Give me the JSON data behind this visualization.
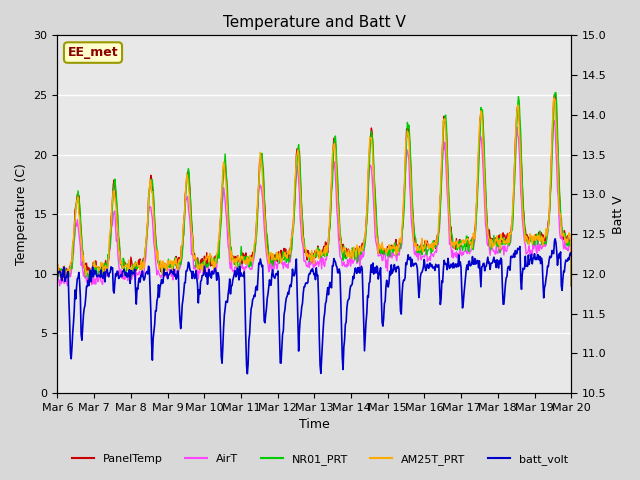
{
  "title": "Temperature and Batt V",
  "xlabel": "Time",
  "ylabel_left": "Temperature (C)",
  "ylabel_right": "Batt V",
  "annotation": "EE_met",
  "xlim": [
    0,
    14
  ],
  "ylim_left": [
    0,
    30
  ],
  "ylim_right": [
    10.5,
    15.0
  ],
  "xtick_labels": [
    "Mar 6",
    "Mar 7",
    "Mar 8",
    "Mar 9",
    "Mar 10",
    "Mar 11",
    "Mar 12",
    "Mar 13",
    "Mar 14",
    "Mar 15",
    "Mar 16",
    "Mar 17",
    "Mar 18",
    "Mar 19",
    "Mar 20"
  ],
  "xtick_positions": [
    0,
    1,
    2,
    3,
    4,
    5,
    6,
    7,
    8,
    9,
    10,
    11,
    12,
    13,
    14
  ],
  "yticks_left": [
    0,
    5,
    10,
    15,
    20,
    25,
    30
  ],
  "yticks_right": [
    10.5,
    11.0,
    11.5,
    12.0,
    12.5,
    13.0,
    13.5,
    14.0,
    14.5,
    15.0
  ],
  "bg_color": "#d8d8d8",
  "plot_bg_color": "#e8e8e8",
  "series": {
    "PanelTemp": {
      "color": "#cc0000",
      "lw": 1.0
    },
    "AirT": {
      "color": "#ff44ff",
      "lw": 1.0
    },
    "NR01_PRT": {
      "color": "#00cc00",
      "lw": 1.0
    },
    "AM25T_PRT": {
      "color": "#ffaa00",
      "lw": 1.0
    },
    "batt_volt": {
      "color": "#0000cc",
      "lw": 1.2
    }
  },
  "grid_color": "#ffffff",
  "grid_lw": 1.0,
  "figsize": [
    6.4,
    4.8
  ],
  "dpi": 100
}
